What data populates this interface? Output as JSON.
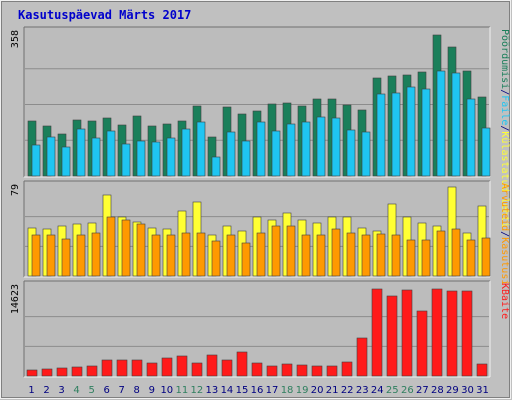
{
  "title": "Kasutuspäevad Märts 2017",
  "colors": {
    "background": "#c0c0c0",
    "panel": "#bcbcbc",
    "frame_light": "#f0f0f0",
    "frame_dark": "#707070",
    "grid": "#8c8c8c",
    "title": "#0000cc",
    "weekday_label": "#000080",
    "weekend_label": "#2f7f5f",
    "hits": "#1a7f5a",
    "files": "#1fc5f2",
    "pages": "#ffff33",
    "visits": "#ff9900",
    "kbytes": "#ff1a1a"
  },
  "chart_data": [
    {
      "type": "bar",
      "name": "top",
      "ymax_label": "358",
      "ylim": [
        0,
        358
      ],
      "categories": [
        "1",
        "2",
        "3",
        "4",
        "5",
        "6",
        "7",
        "8",
        "9",
        "10",
        "11",
        "12",
        "13",
        "14",
        "15",
        "16",
        "17",
        "18",
        "19",
        "20",
        "21",
        "22",
        "23",
        "24",
        "25",
        "26",
        "27",
        "28",
        "29",
        "30",
        "31"
      ],
      "series": [
        {
          "name": "Hits",
          "color_key": "hits",
          "values": [
            138,
            126,
            106,
            140,
            138,
            144,
            128,
            150,
            126,
            130,
            138,
            175,
            98,
            173,
            155,
            163,
            180,
            183,
            175,
            193,
            192,
            178,
            166,
            245,
            250,
            252,
            260,
            352,
            323,
            262,
            198
          ]
        },
        {
          "name": "Faile",
          "color_key": "files",
          "values": [
            77,
            97,
            72,
            118,
            96,
            112,
            79,
            88,
            86,
            95,
            118,
            134,
            48,
            110,
            88,
            136,
            112,
            130,
            136,
            147,
            145,
            115,
            109,
            205,
            207,
            222,
            219,
            262,
            257,
            192,
            120
          ]
        }
      ],
      "right_labels": [
        {
          "text": "Pöördumisi",
          "color_key": "hits"
        },
        {
          "text": "/",
          "color_key": "weekday_label"
        },
        {
          "text": "Faile",
          "color_key": "files"
        },
        {
          "text": "/",
          "color_key": "weekday_label"
        },
        {
          "text": "Külastatud lehti",
          "color_key": "pages"
        }
      ]
    },
    {
      "type": "bar",
      "name": "middle",
      "ymax_label": "79",
      "ylim": [
        0,
        79
      ],
      "categories": [
        "1",
        "2",
        "3",
        "4",
        "5",
        "6",
        "7",
        "8",
        "9",
        "10",
        "11",
        "12",
        "13",
        "14",
        "15",
        "16",
        "17",
        "18",
        "19",
        "20",
        "21",
        "22",
        "23",
        "24",
        "25",
        "26",
        "27",
        "28",
        "29",
        "30",
        "31"
      ],
      "series": [
        {
          "name": "Külastatud lehti",
          "color_key": "pages",
          "values": [
            43,
            42,
            44,
            46,
            47,
            72,
            52,
            48,
            43,
            42,
            58,
            66,
            36,
            44,
            40,
            52,
            50,
            56,
            50,
            47,
            52,
            52,
            43,
            40,
            64,
            52,
            47,
            44,
            79,
            38,
            62
          ]
        },
        {
          "name": "Kasutusi",
          "color_key": "visits",
          "values": [
            36,
            36,
            33,
            36,
            38,
            52,
            50,
            46,
            36,
            36,
            38,
            38,
            31,
            36,
            29,
            38,
            44,
            44,
            36,
            36,
            42,
            38,
            36,
            37,
            36,
            32,
            32,
            40,
            42,
            32,
            34
          ]
        }
      ],
      "right_labels": [
        {
          "text": "Arvuteid",
          "color_key": "visits"
        },
        {
          "text": "/",
          "color_key": "weekday_label"
        },
        {
          "text": "Kasutusi",
          "color_key": "visits"
        }
      ]
    },
    {
      "type": "bar",
      "name": "bottom",
      "ymax_label": "14623",
      "ylim": [
        0,
        14623
      ],
      "categories": [
        "1",
        "2",
        "3",
        "4",
        "5",
        "6",
        "7",
        "8",
        "9",
        "10",
        "11",
        "12",
        "13",
        "14",
        "15",
        "16",
        "17",
        "18",
        "19",
        "20",
        "21",
        "22",
        "23",
        "24",
        "25",
        "26",
        "27",
        "28",
        "29",
        "30",
        "31"
      ],
      "series": [
        {
          "name": "KBaite",
          "color_key": "kbytes",
          "values": [
            950,
            1150,
            1300,
            1550,
            1650,
            2550,
            2600,
            2600,
            2150,
            3000,
            3300,
            2200,
            3500,
            2700,
            4000,
            2200,
            1650,
            2000,
            1850,
            1700,
            1700,
            2300,
            6200,
            14300,
            13200,
            14100,
            10700,
            14300,
            14000,
            13900,
            1900
          ]
        }
      ],
      "right_labels": [
        {
          "text": "KBaite",
          "color_key": "kbytes"
        }
      ]
    }
  ],
  "days": [
    {
      "label": "1",
      "weekend": false
    },
    {
      "label": "2",
      "weekend": false
    },
    {
      "label": "3",
      "weekend": false
    },
    {
      "label": "4",
      "weekend": true
    },
    {
      "label": "5",
      "weekend": true
    },
    {
      "label": "6",
      "weekend": false
    },
    {
      "label": "7",
      "weekend": false
    },
    {
      "label": "8",
      "weekend": false
    },
    {
      "label": "9",
      "weekend": false
    },
    {
      "label": "10",
      "weekend": false
    },
    {
      "label": "11",
      "weekend": true
    },
    {
      "label": "12",
      "weekend": true
    },
    {
      "label": "13",
      "weekend": false
    },
    {
      "label": "14",
      "weekend": false
    },
    {
      "label": "15",
      "weekend": false
    },
    {
      "label": "16",
      "weekend": false
    },
    {
      "label": "17",
      "weekend": false
    },
    {
      "label": "18",
      "weekend": true
    },
    {
      "label": "19",
      "weekend": true
    },
    {
      "label": "20",
      "weekend": false
    },
    {
      "label": "21",
      "weekend": false
    },
    {
      "label": "22",
      "weekend": false
    },
    {
      "label": "23",
      "weekend": false
    },
    {
      "label": "24",
      "weekend": false
    },
    {
      "label": "25",
      "weekend": true
    },
    {
      "label": "26",
      "weekend": true
    },
    {
      "label": "27",
      "weekend": false
    },
    {
      "label": "28",
      "weekend": false
    },
    {
      "label": "29",
      "weekend": false
    },
    {
      "label": "30",
      "weekend": false
    },
    {
      "label": "31",
      "weekend": false
    }
  ]
}
